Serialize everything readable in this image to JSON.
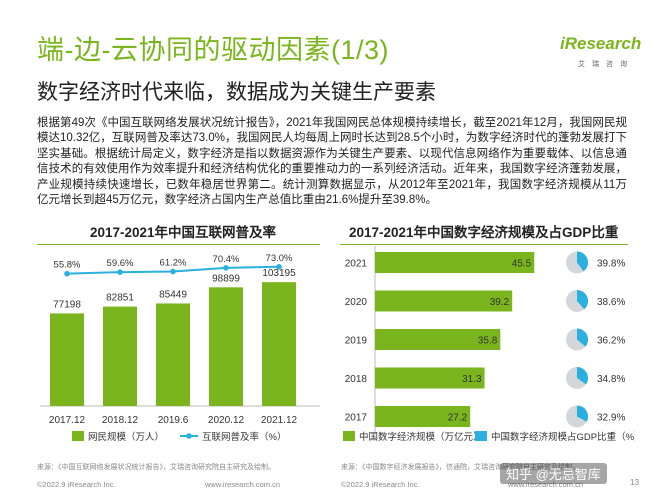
{
  "title": "端-边-云协同的驱动因素(1/3)",
  "subtitle": "数字经济时代来临，数据成为关键生产要素",
  "logo": {
    "word": "iResearch",
    "sub": "艾瑞咨询"
  },
  "paragraph": "根据第49次《中国互联网络发展状况统计报告》，2021年我国网民总体规模持续增长，截至2021年12月，我国网民规模达10.32亿，互联网普及率达73.0%，我国网民人均每周上网时长达到28.5个小时，为数字经济时代的蓬勃发展打下坚实基础。根据统计局定义，数字经济是指以数据资源作为关键生产要素、以现代信息网络作为重要载体、以信息通信技术的有效使用作为效率提升和经济结构优化的重要推动力的一系列经济活动。近年来，我国数字经济蓬勃发展，产业规模持续快速增长，已数年稳居世界第二。统计测算数据显示，从2012年至2021年，我国数字经济规模从11万亿元增长到超45万亿元，数字经济占国内生产总值比重由21.6%提升至39.8%。",
  "charts": {
    "left_title": "2017-2021年中国互联网普及率",
    "right_title": "2017-2021年中国数字经济规模及占GDP比重",
    "left_source": "来源：《中国互联网络发展状况统计报告》，艾瑞咨询研究院自主研究及绘制。",
    "right_source": "来源：《中国数字经济发展报告》，信通院，艾瑞咨询研究院自主研究及绘制。"
  },
  "chart_data": [
    {
      "type": "bar",
      "title": "2017-2021年中国互联网普及率",
      "categories": [
        "2017.12",
        "2018.12",
        "2019.6",
        "2020.12",
        "2021.12"
      ],
      "series": [
        {
          "name": "网民规模（万人）",
          "type": "bar",
          "values": [
            77198,
            82851,
            85449,
            98899,
            103195
          ],
          "color": "#7ab51d"
        },
        {
          "name": "互联网普及率（%）",
          "type": "line",
          "values": [
            55.8,
            59.6,
            61.2,
            70.4,
            73.0
          ],
          "labels": [
            "55.8%",
            "59.6%",
            "61.2%",
            "70.4%",
            "73.0%"
          ],
          "color": "#2ab0e0"
        }
      ],
      "legend": "bottom",
      "grid": false
    },
    {
      "type": "bar",
      "orientation": "horizontal",
      "title": "2017-2021年中国数字经济规模及占GDP比重",
      "categories": [
        "2021",
        "2020",
        "2019",
        "2018",
        "2017"
      ],
      "series": [
        {
          "name": "中国数字经济规模（万亿元）",
          "type": "bar",
          "values": [
            45.5,
            39.2,
            35.8,
            31.3,
            27.2
          ],
          "color": "#7ab51d"
        },
        {
          "name": "中国数字经济规模占GDP比重（%）",
          "type": "pie",
          "values": [
            39.8,
            38.6,
            36.2,
            34.8,
            32.9
          ],
          "labels": [
            "39.8%",
            "38.6%",
            "36.2%",
            "34.8%",
            "32.9%"
          ],
          "color": "#2ab0e0"
        }
      ],
      "legend": "bottom",
      "grid": false
    }
  ],
  "footer": {
    "left1": "©2022.9 iResearch Inc.",
    "center1": "www.iresearch.com.cn",
    "left2": "©2022.9 iResearch Inc.",
    "center2": "www.iresearch.com.cn",
    "page": "13"
  },
  "watermark": "知乎 @无忌智库",
  "colors": {
    "accent": "#7ab51d",
    "line": "#2ab0e0"
  }
}
